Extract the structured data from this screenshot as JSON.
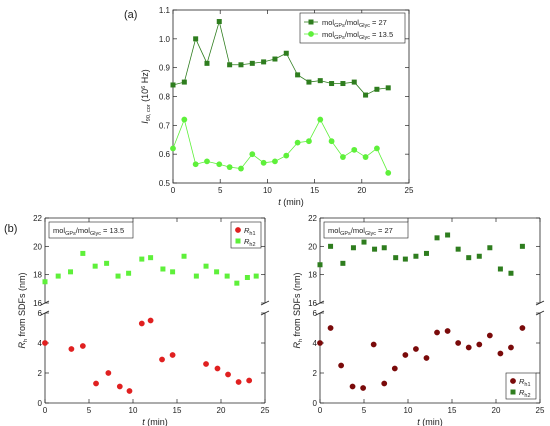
{
  "chart_data": [
    {
      "panel_label": "(a)",
      "type": "line",
      "ylabel_base": "I",
      "ylabel_sub": "90, cor",
      "ylabel_unit_pre": " (10",
      "ylabel_unit_sup": "6",
      "ylabel_unit_post": " Hz)",
      "xlabel_italic": "t",
      "xlabel_unit": " (min)",
      "xlim": [
        0,
        25
      ],
      "ylim": [
        0.5,
        1.1
      ],
      "xticks": [
        "0",
        "5",
        "10",
        "15",
        "20",
        "25"
      ],
      "yticks": [
        "0.5",
        "0.6",
        "0.7",
        "0.8",
        "0.9",
        "1.0",
        "1.1"
      ],
      "legend_position": "top-right",
      "series": [
        {
          "name_pre": "mol",
          "name_sub1": "GPs",
          "name_mid": "/mol",
          "name_sub2": "Glyc",
          "name_post": " = 27",
          "marker": "square",
          "color": "#2e7d1e",
          "x": [
            0,
            1.2,
            2.4,
            3.6,
            4.9,
            6,
            7.2,
            8.4,
            9.6,
            10.8,
            12,
            13.2,
            14.4,
            15.6,
            16.8,
            18,
            19.2,
            20.4,
            21.6,
            22.8
          ],
          "y": [
            0.84,
            0.85,
            1.0,
            0.915,
            1.06,
            0.91,
            0.91,
            0.915,
            0.92,
            0.93,
            0.95,
            0.875,
            0.85,
            0.855,
            0.845,
            0.845,
            0.85,
            0.805,
            0.825,
            0.83
          ]
        },
        {
          "name_pre": "mol",
          "name_sub1": "GPs",
          "name_mid": "/mol",
          "name_sub2": "Glyc",
          "name_post": " = 13.5",
          "marker": "circle",
          "color": "#5ef03a",
          "x": [
            0,
            1.2,
            2.4,
            3.6,
            4.9,
            6,
            7.2,
            8.4,
            9.6,
            10.8,
            12,
            13.2,
            14.4,
            15.6,
            16.8,
            18,
            19.2,
            20.4,
            21.6,
            22.8
          ],
          "y": [
            0.62,
            0.72,
            0.565,
            0.575,
            0.565,
            0.555,
            0.55,
            0.6,
            0.57,
            0.575,
            0.595,
            0.64,
            0.645,
            0.72,
            0.645,
            0.59,
            0.615,
            0.59,
            0.62,
            0.535
          ]
        }
      ]
    },
    {
      "panel_label": "(b)",
      "type": "scatter",
      "ylabel_base": "R",
      "ylabel_sub": "h",
      "ylabel_rest": " from SDFs (nm)",
      "xlabel_italic": "t",
      "xlabel_unit": " (min)",
      "xlim": [
        0,
        25
      ],
      "axis_break": true,
      "lower_ylim": [
        0,
        6
      ],
      "upper_ylim": [
        16,
        22
      ],
      "lower_yticks": [
        "0",
        "2",
        "4",
        "6"
      ],
      "upper_yticks": [
        "16",
        "18",
        "20",
        "22"
      ],
      "xticks": [
        "0",
        "5",
        "10",
        "15",
        "20",
        "25"
      ],
      "legend_position": "top-right",
      "textbox": {
        "pre": "mol",
        "sub1": "GPs",
        "mid": "/mol",
        "sub2": "Glyc",
        "post": " = 13.5"
      },
      "series": [
        {
          "name_base": "R",
          "name_sub": "h1",
          "marker": "circle",
          "color": "#e02020",
          "x": [
            0,
            3,
            4.3,
            5.8,
            7.2,
            8.5,
            9.6,
            11,
            12,
            13.3,
            14.5,
            18.3,
            19.6,
            20.8,
            22,
            23.2
          ],
          "y": [
            4.0,
            3.6,
            3.8,
            1.3,
            2.0,
            1.1,
            0.8,
            5.3,
            5.5,
            2.9,
            3.2,
            2.6,
            2.3,
            1.9,
            1.4,
            1.5
          ]
        },
        {
          "name_base": "R",
          "name_sub": "h2",
          "marker": "square",
          "color": "#5ef03a",
          "x": [
            0,
            1.5,
            2.9,
            4.3,
            5.7,
            7,
            8.3,
            9.5,
            11,
            12,
            13.4,
            14.5,
            15.8,
            17.2,
            18.3,
            19.5,
            20.7,
            21.8,
            23,
            24
          ],
          "y": [
            17.5,
            17.9,
            18.2,
            19.5,
            18.6,
            18.8,
            17.9,
            18.1,
            19.1,
            19.2,
            18.4,
            18.2,
            19.3,
            17.9,
            18.6,
            18.2,
            17.9,
            17.4,
            17.8,
            17.9
          ]
        }
      ]
    },
    {
      "panel_label": "",
      "type": "scatter",
      "ylabel_base": "R",
      "ylabel_sub": "h",
      "ylabel_rest": " from SDFs (nm)",
      "xlabel_italic": "t",
      "xlabel_unit": " (min)",
      "xlim": [
        0,
        25
      ],
      "axis_break": true,
      "lower_ylim": [
        0,
        6
      ],
      "upper_ylim": [
        16,
        22
      ],
      "lower_yticks": [
        "0",
        "2",
        "4",
        "6"
      ],
      "upper_yticks": [
        "16",
        "18",
        "20",
        "22"
      ],
      "xticks": [
        "0",
        "5",
        "10",
        "15",
        "20",
        "25"
      ],
      "legend_position": "bottom-right",
      "textbox": {
        "pre": "mol",
        "sub1": "GPs",
        "mid": "/mol",
        "sub2": "Glyc",
        "post": " = 27"
      },
      "series": [
        {
          "name_base": "R",
          "name_sub": "h1",
          "marker": "circle",
          "color": "#7a0a0a",
          "x": [
            0,
            1.2,
            2.4,
            3.7,
            4.9,
            6.1,
            7.3,
            8.5,
            9.7,
            10.9,
            12.1,
            13.3,
            14.5,
            15.7,
            16.9,
            18.1,
            19.3,
            20.5,
            21.7,
            23
          ],
          "y": [
            4.0,
            5.0,
            2.5,
            1.1,
            1.0,
            3.9,
            1.3,
            2.3,
            3.2,
            3.6,
            3.0,
            4.7,
            4.8,
            4.0,
            3.7,
            3.9,
            4.5,
            3.3,
            3.7,
            5.0
          ]
        },
        {
          "name_base": "R",
          "name_sub": "h2",
          "marker": "square",
          "color": "#2e7d1e",
          "x": [
            0,
            1.2,
            2.6,
            3.8,
            5,
            6.2,
            7.3,
            8.6,
            9.7,
            10.9,
            12.1,
            13.3,
            14.5,
            15.7,
            16.9,
            18.1,
            19.3,
            20.5,
            21.7,
            23
          ],
          "y": [
            18.7,
            20.0,
            18.8,
            19.9,
            20.3,
            19.8,
            19.9,
            19.2,
            19.1,
            19.3,
            19.5,
            20.6,
            20.8,
            19.8,
            19.2,
            19.3,
            19.9,
            18.4,
            18.1,
            20.0
          ]
        }
      ]
    }
  ]
}
